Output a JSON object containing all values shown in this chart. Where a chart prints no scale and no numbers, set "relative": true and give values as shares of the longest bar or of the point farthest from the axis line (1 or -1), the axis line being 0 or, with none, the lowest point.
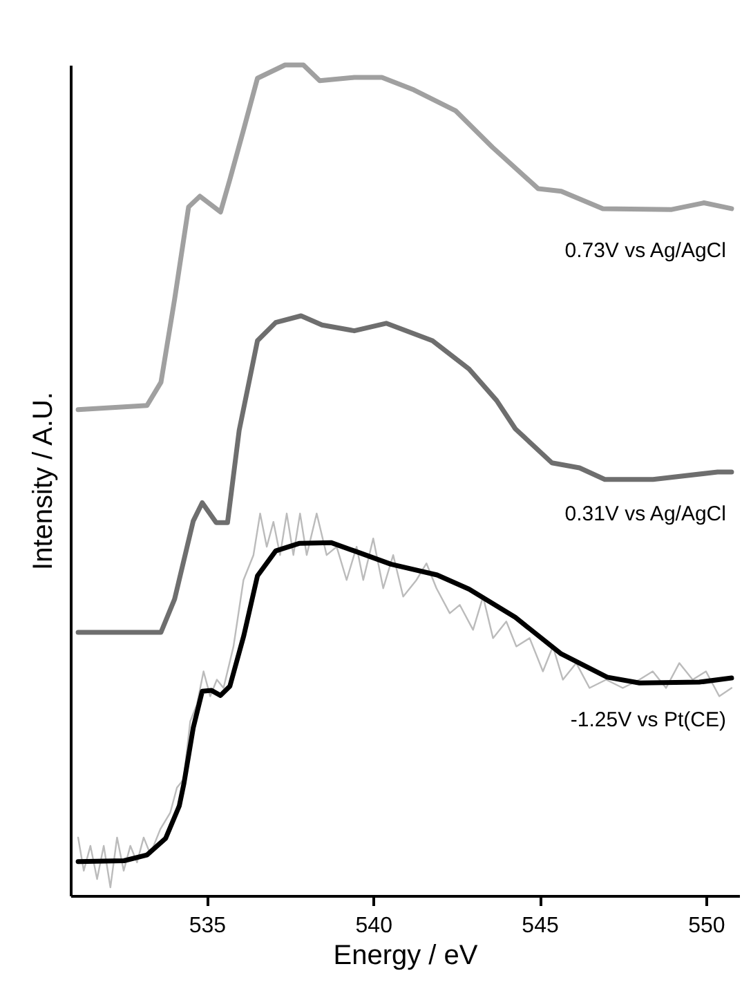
{
  "chart_data": {
    "type": "line",
    "relative": true,
    "xlabel": "Energy / eV",
    "ylabel": "Intensity / A.U.",
    "xlim": [
      530.9,
      551.0
    ],
    "xticks": [
      535,
      540,
      545,
      550
    ],
    "grid": false,
    "legend": false,
    "marker": "none",
    "line_style": "solid",
    "series": [
      {
        "name": "0.73V vs Ag/AgCl",
        "color": "#a0a0a0",
        "x": [
          531.13,
          533.2,
          533.62,
          534.03,
          534.45,
          534.79,
          535.41,
          535.69,
          536.11,
          536.52,
          537.35,
          537.9,
          538.39,
          539.43,
          540.26,
          541.22,
          542.47,
          543.58,
          544.96,
          545.65,
          546.9,
          548.97,
          549.94,
          550.77
        ],
        "values": [
          0.585,
          0.59,
          0.618,
          0.718,
          0.829,
          0.842,
          0.823,
          0.862,
          0.923,
          0.984,
          1,
          1,
          0.981,
          0.985,
          0.985,
          0.97,
          0.945,
          0.901,
          0.851,
          0.848,
          0.827,
          0.826,
          0.834,
          0.827
        ]
      },
      {
        "name": "0.31V vs Ag/AgCl",
        "color": "#6e6e6e",
        "x": [
          531.13,
          533.62,
          534.03,
          534.59,
          534.86,
          535.28,
          535.62,
          535.97,
          536.52,
          537.07,
          537.83,
          538.46,
          539.43,
          540.39,
          541.78,
          542.88,
          543.71,
          544.27,
          545.37,
          546.2,
          546.96,
          548.41,
          550.35,
          550.77
        ],
        "values": [
          0.317,
          0.317,
          0.357,
          0.451,
          0.473,
          0.449,
          0.449,
          0.56,
          0.668,
          0.69,
          0.698,
          0.687,
          0.68,
          0.689,
          0.668,
          0.634,
          0.596,
          0.562,
          0.521,
          0.515,
          0.501,
          0.501,
          0.51,
          0.51
        ]
      },
      {
        "color": "#bbbbbb",
        "x": [
          531.13,
          531.3,
          531.5,
          531.7,
          531.9,
          532.1,
          532.3,
          532.5,
          532.7,
          532.9,
          533.1,
          533.3,
          533.6,
          533.9,
          534.1,
          534.3,
          534.5,
          534.7,
          534.9,
          535.1,
          535.3,
          535.5,
          535.8,
          536.1,
          536.4,
          536.6,
          536.8,
          537.0,
          537.2,
          537.4,
          537.6,
          537.8,
          538.0,
          538.3,
          538.6,
          538.9,
          539.2,
          539.5,
          539.7,
          540.0,
          540.3,
          540.6,
          540.9,
          541.3,
          541.6,
          541.9,
          542.3,
          542.6,
          543.0,
          543.3,
          543.6,
          544.0,
          544.3,
          544.7,
          545.1,
          545.4,
          545.7,
          546.1,
          546.5,
          547.0,
          547.5,
          548.0,
          548.4,
          548.8,
          549.2,
          549.6,
          550.0,
          550.4,
          550.77
        ],
        "values": [
          0.07,
          0.03,
          0.06,
          0.02,
          0.06,
          0.01,
          0.07,
          0.03,
          0.06,
          0.04,
          0.07,
          0.05,
          0.08,
          0.1,
          0.13,
          0.14,
          0.21,
          0.23,
          0.27,
          0.24,
          0.26,
          0.25,
          0.3,
          0.38,
          0.41,
          0.46,
          0.42,
          0.45,
          0.41,
          0.46,
          0.41,
          0.46,
          0.41,
          0.46,
          0.41,
          0.42,
          0.38,
          0.42,
          0.38,
          0.43,
          0.37,
          0.41,
          0.36,
          0.38,
          0.4,
          0.37,
          0.34,
          0.35,
          0.32,
          0.36,
          0.31,
          0.33,
          0.3,
          0.31,
          0.27,
          0.3,
          0.26,
          0.28,
          0.25,
          0.26,
          0.25,
          0.26,
          0.27,
          0.25,
          0.28,
          0.26,
          0.27,
          0.24,
          0.25
        ]
      },
      {
        "name": "-1.25V vs Pt(CE)",
        "color": "#000000",
        "x": [
          531.13,
          532.51,
          533.2,
          533.76,
          534.17,
          534.31,
          534.59,
          534.86,
          535.14,
          535.41,
          535.69,
          536.11,
          536.52,
          537.07,
          537.77,
          538.73,
          539.43,
          540.53,
          541.92,
          542.88,
          544.27,
          545.65,
          547.03,
          548.0,
          549.8,
          550.77
        ],
        "values": [
          0.041,
          0.042,
          0.049,
          0.069,
          0.108,
          0.135,
          0.202,
          0.246,
          0.247,
          0.241,
          0.252,
          0.313,
          0.385,
          0.415,
          0.424,
          0.425,
          0.415,
          0.399,
          0.386,
          0.369,
          0.335,
          0.291,
          0.263,
          0.256,
          0.257,
          0.262
        ]
      }
    ]
  }
}
